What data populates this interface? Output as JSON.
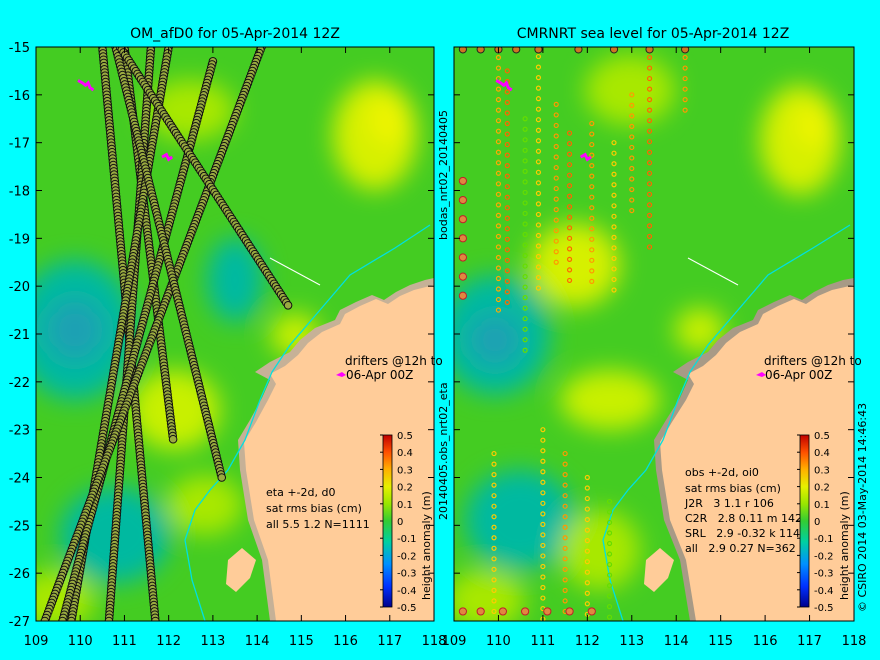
{
  "colors": {
    "background": "#00ffff",
    "land": "#ffcc99",
    "coast_shelf": "#b0a090",
    "drifter": "#ff00ff",
    "river": "#00e0e0"
  },
  "left_panel": {
    "title": "OM_afD0 for 05-Apr-2014 12Z",
    "stats_lines": [
      "eta +-2d, d0",
      "sat rms bias (cm)",
      "all 5.5 1.2 N=1111"
    ],
    "drifters_lines": [
      "drifters @12h to",
      "06-Apr 00Z"
    ],
    "colorbar_label": "height anomaly (m)"
  },
  "right_panel": {
    "title": "CMRNRT sea level  for 05-Apr-2014 12Z",
    "stats_lines": [
      "obs +-2d, oi0",
      "sat rms bias (cm)",
      "J2R   3 1.1 r 106",
      "C2R   2.8 0.11 m 142",
      "SRL   2.9 -0.32 k 114",
      "all   2.9 0.27 N=362"
    ],
    "drifters_lines": [
      "drifters @12h to",
      "06-Apr 00Z"
    ],
    "colorbar_label": "height anomaly (m)"
  },
  "middle_label": "20140405.obs_nrt02_eta",
  "middle_label_top": "bodas_nrt02_20140405",
  "footer_credit": "© CSIRO 2014   03-May-2014 14:46:43",
  "axes": {
    "x_ticks": [
      "109",
      "110",
      "111",
      "112",
      "113",
      "114",
      "115",
      "116",
      "117",
      "118"
    ],
    "y_ticks": [
      "-15",
      "-16",
      "-17",
      "-18",
      "-19",
      "-20",
      "-21",
      "-22",
      "-23",
      "-24",
      "-25",
      "-26",
      "-27"
    ],
    "x_range": [
      109,
      118
    ],
    "y_range": [
      -27,
      -15
    ]
  },
  "colorbar": {
    "ticks": [
      "0.5",
      "0.4",
      "0.3",
      "0.2",
      "0.1",
      "0",
      "-0.1",
      "-0.2",
      "-0.3",
      "-0.4",
      "-0.5"
    ],
    "range": [
      -0.5,
      0.5
    ]
  }
}
